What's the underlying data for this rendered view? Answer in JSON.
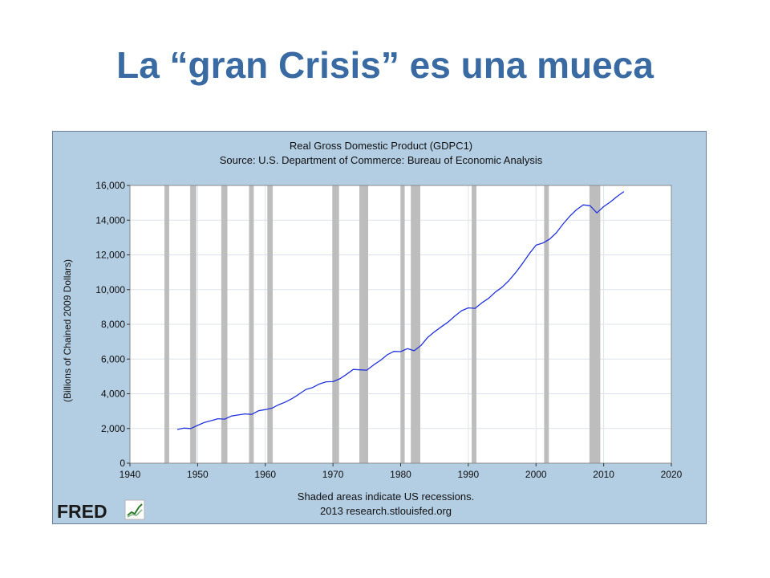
{
  "slide": {
    "title": "La “gran Crisis” es una mueca"
  },
  "colors": {
    "title": "#3a6aa2",
    "panel_bg": "#b3cde3",
    "plot_bg": "#ffffff",
    "grid": "#dde3ea",
    "recession": "#bdbdbd",
    "line": "#2233dd",
    "text": "#111111"
  },
  "logo": {
    "text": "FRED",
    "icon": "fred-chart-icon"
  },
  "chart_data": {
    "type": "line",
    "title": "Real Gross Domestic Product (GDPC1)",
    "subtitle": "Source: U.S. Department of Commerce: Bureau of Economic Analysis",
    "ylabel": "(Billions of Chained 2009 Dollars)",
    "xlabel": "",
    "footnote": "Shaded areas indicate US recessions.",
    "credit": "2013 research.stlouisfed.org",
    "xlim": [
      1940,
      2020
    ],
    "ylim": [
      0,
      16000
    ],
    "x_ticks": [
      1940,
      1950,
      1960,
      1970,
      1980,
      1990,
      2000,
      2010,
      2020
    ],
    "x_tick_labels": [
      "1940",
      "1950",
      "1960",
      "1970",
      "1980",
      "1990",
      "2000",
      "2010",
      "2020"
    ],
    "y_ticks": [
      0,
      2000,
      4000,
      6000,
      8000,
      10000,
      12000,
      14000,
      16000
    ],
    "y_tick_labels": [
      "0",
      "2,000",
      "4,000",
      "6,000",
      "8,000",
      "10,000",
      "12,000",
      "14,000",
      "16,000"
    ],
    "grid": true,
    "legend": "none",
    "recessions": [
      [
        1945.1,
        1945.8
      ],
      [
        1948.9,
        1949.8
      ],
      [
        1953.5,
        1954.4
      ],
      [
        1957.6,
        1958.3
      ],
      [
        1960.3,
        1961.1
      ],
      [
        1969.9,
        1970.9
      ],
      [
        1973.9,
        1975.2
      ],
      [
        1980.0,
        1980.6
      ],
      [
        1981.5,
        1982.9
      ],
      [
        1990.5,
        1991.2
      ],
      [
        2001.2,
        2001.9
      ],
      [
        2007.9,
        2009.5
      ]
    ],
    "series": [
      {
        "x": [
          1947,
          1948,
          1949,
          1950,
          1951,
          1952,
          1953,
          1954,
          1955,
          1956,
          1957,
          1958,
          1959,
          1960,
          1961,
          1962,
          1963,
          1964,
          1965,
          1966,
          1967,
          1968,
          1969,
          1970,
          1971,
          1972,
          1973,
          1974,
          1975,
          1976,
          1977,
          1978,
          1979,
          1980,
          1981,
          1982,
          1983,
          1984,
          1985,
          1986,
          1987,
          1988,
          1989,
          1990,
          1991,
          1992,
          1993,
          1994,
          1995,
          1996,
          1997,
          1998,
          1999,
          2000,
          2001,
          2002,
          2003,
          2004,
          2005,
          2006,
          2007,
          2008,
          2009,
          2010,
          2011,
          2012,
          2013
        ],
        "values": [
          1940,
          2020,
          2000,
          2180,
          2350,
          2450,
          2560,
          2540,
          2720,
          2780,
          2840,
          2810,
          3020,
          3090,
          3170,
          3370,
          3530,
          3730,
          3980,
          4250,
          4360,
          4570,
          4690,
          4700,
          4860,
          5120,
          5400,
          5380,
          5360,
          5660,
          5920,
          6240,
          6440,
          6430,
          6600,
          6480,
          6780,
          7250,
          7570,
          7850,
          8130,
          8470,
          8780,
          8950,
          8920,
          9240,
          9500,
          9860,
          10140,
          10520,
          10980,
          11500,
          12060,
          12560,
          12680,
          12900,
          13270,
          13780,
          14230,
          14610,
          14880,
          14830,
          14420,
          14780,
          15050,
          15370,
          15650
        ]
      }
    ]
  }
}
